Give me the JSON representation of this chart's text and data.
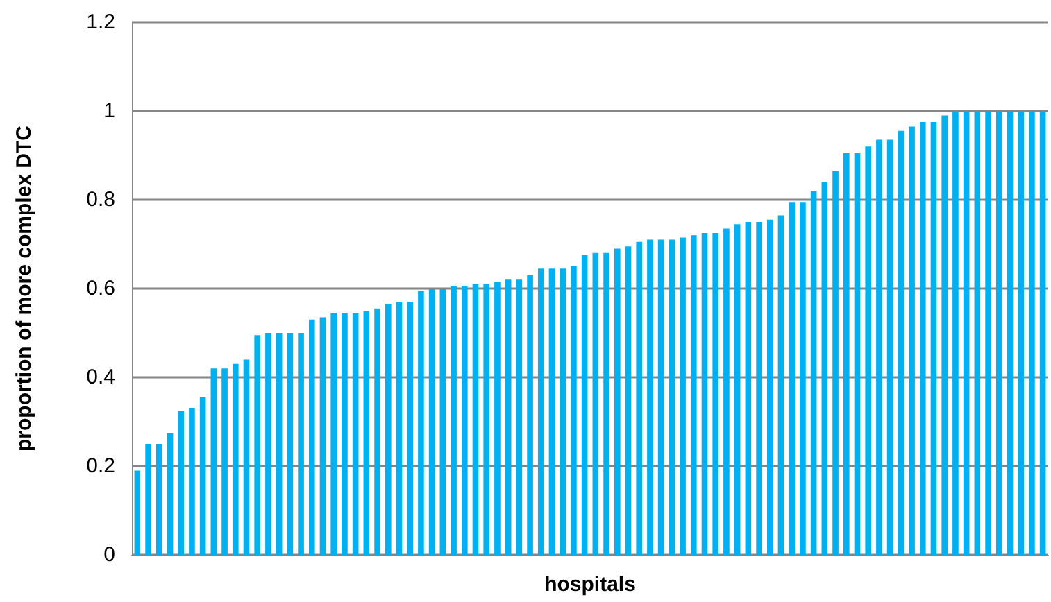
{
  "chart_data": {
    "type": "bar",
    "xlabel": "hospitals",
    "ylabel": "proportion of more complex DTC",
    "categories": [
      null,
      null,
      null,
      null,
      null,
      null,
      null,
      null,
      null,
      null,
      null,
      null,
      null,
      null,
      null,
      null,
      null,
      null,
      null,
      null,
      null,
      null,
      null,
      null,
      null,
      null,
      null,
      null,
      null,
      null,
      null,
      null,
      null,
      null,
      null,
      null,
      null,
      null,
      null,
      null,
      null,
      null,
      null,
      null,
      null,
      null,
      null,
      null,
      null,
      null,
      null,
      null,
      null,
      null,
      null,
      null,
      null,
      null,
      null,
      null,
      null,
      null,
      null,
      null,
      null,
      null,
      null,
      null,
      null,
      null,
      null,
      null,
      null,
      null,
      null,
      null,
      null,
      null,
      null,
      null,
      null,
      null,
      null,
      null
    ],
    "values": [
      0.19,
      0.25,
      0.25,
      0.275,
      0.325,
      0.33,
      0.355,
      0.42,
      0.42,
      0.43,
      0.44,
      0.495,
      0.5,
      0.5,
      0.5,
      0.5,
      0.53,
      0.535,
      0.545,
      0.545,
      0.545,
      0.55,
      0.555,
      0.565,
      0.57,
      0.57,
      0.595,
      0.6,
      0.6,
      0.605,
      0.605,
      0.61,
      0.61,
      0.615,
      0.62,
      0.62,
      0.63,
      0.645,
      0.645,
      0.645,
      0.65,
      0.675,
      0.68,
      0.68,
      0.69,
      0.695,
      0.705,
      0.71,
      0.71,
      0.71,
      0.715,
      0.72,
      0.725,
      0.725,
      0.735,
      0.745,
      0.75,
      0.75,
      0.755,
      0.765,
      0.795,
      0.795,
      0.82,
      0.84,
      0.865,
      0.905,
      0.905,
      0.92,
      0.935,
      0.935,
      0.955,
      0.965,
      0.975,
      0.975,
      0.99,
      1,
      1,
      1,
      1,
      1,
      1,
      1,
      1,
      1
    ],
    "color": "#00b0f0",
    "ylim": [
      0,
      1.2
    ],
    "yticks": [
      0,
      0.2,
      0.4,
      0.6,
      0.8,
      1,
      1.2
    ],
    "grid": "y"
  }
}
